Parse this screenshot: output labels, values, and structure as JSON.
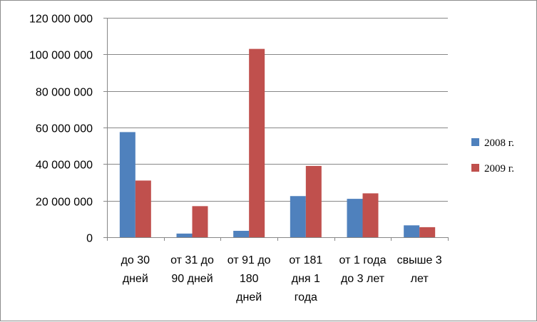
{
  "chart_data": {
    "type": "bar",
    "categories": [
      [
        "до 30",
        "дней"
      ],
      [
        "от 31 до",
        "90 дней"
      ],
      [
        "от 91 до",
        "180",
        "дней"
      ],
      [
        "от 181",
        "дня 1",
        "года"
      ],
      [
        "от 1 года",
        "до 3 лет"
      ],
      [
        "свыше 3",
        "лет"
      ]
    ],
    "series": [
      {
        "name": "2008 г.",
        "color": "#4f81bd",
        "values": [
          57500000,
          2000000,
          3500000,
          22500000,
          21000000,
          6500000
        ]
      },
      {
        "name": "2009 г.",
        "color": "#c0504d",
        "values": [
          31000000,
          17000000,
          103000000,
          39000000,
          24000000,
          5500000
        ]
      }
    ],
    "yticks": [
      "0",
      "20 000 000",
      "40 000 000",
      "60 000 000",
      "80 000 000",
      "100 000 000",
      "120 000 000"
    ],
    "ylim": [
      0,
      120000000
    ],
    "grid": true,
    "legend_position": "right"
  }
}
